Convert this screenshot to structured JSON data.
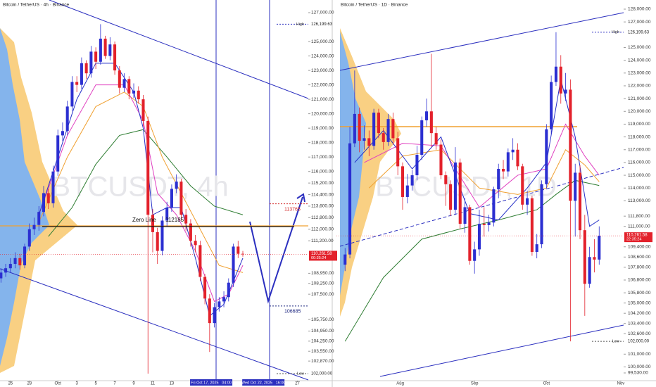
{
  "chart_data": [
    {
      "type": "candlestick",
      "title": "Bitcoin / TetherUS · 4h · Binance",
      "watermark": "BTCUSDT, 4h",
      "xlim": [
        -0.2,
        64.8
      ],
      "ylim": [
        101561,
        127877
      ],
      "xticks": [
        {
          "value": 2,
          "label": "26"
        },
        {
          "value": 6,
          "label": "28"
        },
        {
          "value": 12,
          "label": "Oct"
        },
        {
          "value": 16,
          "label": "3"
        },
        {
          "value": 20,
          "label": "5"
        },
        {
          "value": 24,
          "label": "7"
        },
        {
          "value": 28,
          "label": "9"
        },
        {
          "value": 32,
          "label": "11"
        },
        {
          "value": 36,
          "label": "13"
        },
        {
          "value": 62.5,
          "label": "27"
        }
      ],
      "yticks": [
        {
          "value": 127000,
          "label": "127,000.00"
        },
        {
          "value": 125000,
          "label": "125,000.00"
        },
        {
          "value": 124000,
          "label": "124,000.00"
        },
        {
          "value": 123000,
          "label": "123,000.00"
        },
        {
          "value": 122000,
          "label": "122,000.00"
        },
        {
          "value": 121000,
          "label": "121,000.00"
        },
        {
          "value": 120000,
          "label": "120,000.00"
        },
        {
          "value": 119000,
          "label": "119,000.00"
        },
        {
          "value": 118000,
          "label": "118,000.00"
        },
        {
          "value": 117000,
          "label": "117,000.00"
        },
        {
          "value": 116000,
          "label": "116,000.00"
        },
        {
          "value": 115200,
          "label": "115,200.00"
        },
        {
          "value": 114400,
          "label": "114,400.00"
        },
        {
          "value": 113600,
          "label": "113,600.00"
        },
        {
          "value": 112800,
          "label": "112,800.00"
        },
        {
          "value": 112000,
          "label": "112,000.00"
        },
        {
          "value": 111200,
          "label": "111,200.00"
        },
        {
          "value": 108950,
          "label": "108,950.00"
        },
        {
          "value": 108250,
          "label": "108,250.00"
        },
        {
          "value": 107500,
          "label": "107,500.00"
        },
        {
          "value": 105750,
          "label": "105,750.00"
        },
        {
          "value": 104950,
          "label": "104,950.00"
        },
        {
          "value": 104250,
          "label": "104,250.00"
        },
        {
          "value": 103550,
          "label": "103,550.00"
        },
        {
          "value": 102870,
          "label": "102,870.00"
        }
      ],
      "open": [
        108600,
        109000,
        109300,
        109600,
        110000,
        109500,
        110800,
        112000,
        112300,
        113200,
        114500,
        113800,
        116000,
        118500,
        118800,
        120500,
        122200,
        122000,
        123500,
        122800,
        124300,
        123600,
        125200,
        124000,
        124800,
        123000,
        121800,
        122400,
        121400,
        121600,
        121000,
        119500,
        113000,
        111800,
        110500,
        112600,
        113500,
        114800,
        115300,
        113000,
        112400,
        111200,
        110900,
        108700,
        107200,
        105500,
        106600,
        107000,
        107300,
        108300,
        110800,
        110300
      ],
      "high": [
        109300,
        109600,
        110000,
        110400,
        110300,
        111000,
        112400,
        112800,
        113600,
        115000,
        114800,
        116400,
        118900,
        119400,
        120900,
        122600,
        122600,
        123900,
        123700,
        124700,
        124600,
        126200,
        125400,
        125300,
        125000,
        123300,
        122800,
        122600,
        122100,
        121900,
        121300,
        119800,
        113400,
        112100,
        112900,
        113900,
        115100,
        115800,
        115500,
        113400,
        112700,
        111600,
        111200,
        108900,
        107500,
        106900,
        107300,
        107700,
        108600,
        111000,
        111200,
        110500
      ],
      "low": [
        108300,
        108700,
        109000,
        109300,
        109200,
        109300,
        110500,
        111600,
        111900,
        112900,
        113400,
        113500,
        115700,
        118100,
        118500,
        120200,
        121500,
        121700,
        122400,
        122500,
        123100,
        123400,
        123800,
        123700,
        122700,
        121400,
        121500,
        121000,
        121100,
        120700,
        119100,
        102000,
        110400,
        109600,
        110200,
        112200,
        113200,
        114500,
        112600,
        111900,
        110800,
        110400,
        108400,
        106800,
        103500,
        105200,
        106300,
        106600,
        107000,
        108000,
        110000,
        110100
      ],
      "close": [
        109000,
        109300,
        109600,
        110000,
        109500,
        110800,
        112000,
        112300,
        113200,
        114500,
        113800,
        116000,
        118500,
        118800,
        120500,
        122200,
        122000,
        123500,
        122800,
        124300,
        123600,
        125200,
        124000,
        124800,
        123000,
        121800,
        122400,
        121400,
        121600,
        121000,
        119500,
        113000,
        111800,
        110500,
        112600,
        113500,
        114800,
        115300,
        113000,
        112400,
        111200,
        110900,
        108700,
        107200,
        105500,
        106600,
        107000,
        107300,
        108300,
        110800,
        110300,
        110261.58
      ],
      "up_color": "#2b2fd1",
      "down_color": "#e3212b",
      "indicators": [
        {
          "color": "#2e7d32",
          "x": [
            10,
            15,
            20,
            25,
            30,
            35,
            40,
            45,
            51
          ],
          "values": [
            111500,
            113500,
            116500,
            118500,
            118900,
            117000,
            115000,
            113600,
            113000
          ]
        },
        {
          "color": "#f0a030",
          "x": [
            8,
            14,
            20,
            26,
            30,
            34,
            38,
            42,
            46,
            51
          ],
          "values": [
            112500,
            117000,
            120500,
            121500,
            120500,
            117000,
            114500,
            112000,
            109500,
            109000
          ]
        },
        {
          "color": "#e040c0",
          "x": [
            8,
            14,
            20,
            26,
            30,
            33,
            37,
            41,
            45,
            48,
            51
          ],
          "values": [
            113000,
            118500,
            122000,
            122000,
            119500,
            114500,
            113000,
            110500,
            107000,
            107500,
            109500
          ]
        },
        {
          "color": "#2530c8",
          "x": [
            8,
            12,
            16,
            20,
            24,
            28,
            30,
            32,
            35,
            38,
            41,
            44,
            47,
            51
          ],
          "values": [
            113000,
            117000,
            121000,
            123500,
            123500,
            121500,
            119000,
            113000,
            113500,
            113500,
            110000,
            106000,
            106800,
            110000
          ]
        }
      ],
      "high_marker": {
        "label": "High",
        "value": 126199.63,
        "value_label": "126,199.63"
      },
      "low_marker": {
        "label": "Low",
        "value": 102000,
        "value_label": "102,000.00"
      },
      "last_price": {
        "value": 110261.58,
        "value_label": "110,261.58",
        "countdown": "00:35:24"
      },
      "levels": [
        {
          "label": "Zero Line",
          "value": 112185,
          "color": "#111111"
        },
        {
          "value": 113765,
          "color": "#d32f2f"
        },
        {
          "value": 106685,
          "color": "#1a237e"
        }
      ],
      "cursor_labels": [
        {
          "value": 44.33,
          "label": "Fri Oct 17, 2025   04:00"
        },
        {
          "value": 55.33,
          "label": "Wed Oct 22, 2025   16:00"
        }
      ]
    },
    {
      "type": "candlestick",
      "title": "Bitcoin / TetherUS · 1D · Binance",
      "watermark": "BTCUSDT, 1D",
      "xlim": [
        -1.8,
        58.1
      ],
      "ylim": [
        98979,
        128716
      ],
      "xticks": [
        {
          "value": 11.5,
          "label": "Aug"
        },
        {
          "value": 27,
          "label": "Sep"
        },
        {
          "value": 42,
          "label": "Oct"
        },
        {
          "value": 57.5,
          "label": "Nov"
        }
      ],
      "yticks": [
        {
          "value": 128000,
          "label": "128,000.00"
        },
        {
          "value": 127000,
          "label": "127,000.00"
        },
        {
          "value": 125000,
          "label": "125,000.00"
        },
        {
          "value": 124000,
          "label": "124,000.00"
        },
        {
          "value": 123000,
          "label": "123,000.00"
        },
        {
          "value": 122000,
          "label": "122,000.00"
        },
        {
          "value": 121000,
          "label": "121,000.00"
        },
        {
          "value": 120000,
          "label": "120,000.00"
        },
        {
          "value": 119000,
          "label": "119,000.00"
        },
        {
          "value": 118000,
          "label": "118,000.00"
        },
        {
          "value": 117000,
          "label": "117,000.00"
        },
        {
          "value": 116000,
          "label": "116,000.00"
        },
        {
          "value": 115000,
          "label": "115,000.00"
        },
        {
          "value": 114000,
          "label": "114,000.00"
        },
        {
          "value": 113000,
          "label": "113,000.00"
        },
        {
          "value": 111800,
          "label": "111,800.00"
        },
        {
          "value": 111000,
          "label": "111,000.00"
        },
        {
          "value": 109400,
          "label": "109,400.00"
        },
        {
          "value": 108600,
          "label": "108,600.00"
        },
        {
          "value": 107800,
          "label": "107,800.00"
        },
        {
          "value": 106800,
          "label": "106,800.00"
        },
        {
          "value": 105800,
          "label": "105,800.00"
        },
        {
          "value": 105000,
          "label": "105,000.00"
        },
        {
          "value": 104200,
          "label": "104,200.00"
        },
        {
          "value": 103400,
          "label": "103,400.00"
        },
        {
          "value": 102600,
          "label": "102,600.00"
        },
        {
          "value": 101000,
          "label": "101,000.00"
        },
        {
          "value": 100000,
          "label": "100,000.00"
        },
        {
          "value": 99530,
          "label": "99,530.00"
        }
      ],
      "open": [
        108000,
        108800,
        117500,
        119800,
        117700,
        117900,
        117300,
        119900,
        118300,
        117600,
        119400,
        117900,
        115700,
        113300,
        114200,
        115000,
        116600,
        119300,
        120000,
        118300,
        117400,
        115000,
        114300,
        112300,
        116000,
        111200,
        112500,
        108300,
        109200,
        111200,
        111100,
        111300,
        113900,
        115500,
        115300,
        116800,
        117000,
        115700,
        112700,
        113200,
        109000,
        109600,
        114300,
        118600,
        122300,
        123500,
        121400,
        121700,
        113000,
        115200,
        110700,
        106500,
        108600,
        108400
      ],
      "high": [
        109300,
        118800,
        123200,
        120300,
        118900,
        118500,
        120200,
        120200,
        118700,
        119800,
        119900,
        118400,
        116000,
        115100,
        115400,
        117300,
        119600,
        121000,
        124500,
        118800,
        117800,
        115300,
        114600,
        117200,
        116300,
        113200,
        112700,
        109800,
        112300,
        112500,
        111900,
        114100,
        115900,
        116200,
        117100,
        117900,
        117500,
        115900,
        113800,
        113400,
        110400,
        114600,
        119000,
        122800,
        126200,
        124400,
        123000,
        122500,
        115900,
        115800,
        111900,
        109400,
        110000,
        111000
      ],
      "low": [
        107500,
        108500,
        117200,
        116800,
        117000,
        116500,
        117000,
        117900,
        117000,
        117300,
        117400,
        115000,
        112300,
        112800,
        113800,
        114600,
        116200,
        118800,
        117200,
        117000,
        114700,
        112600,
        111800,
        111900,
        110800,
        110500,
        108000,
        107300,
        108700,
        110200,
        110600,
        111000,
        113200,
        114700,
        114900,
        116200,
        115400,
        112300,
        111900,
        108700,
        108500,
        109300,
        114000,
        118200,
        122000,
        120600,
        120800,
        102000,
        110200,
        110000,
        104000,
        106200,
        107400,
        108000
      ],
      "close": [
        108800,
        117500,
        119800,
        117700,
        117900,
        117300,
        119900,
        118300,
        117600,
        119400,
        117900,
        115700,
        113300,
        114200,
        115000,
        116600,
        119300,
        120000,
        118300,
        117400,
        115000,
        114300,
        112300,
        116000,
        111200,
        112500,
        108300,
        109200,
        111200,
        111100,
        111300,
        113900,
        115500,
        115300,
        116800,
        117000,
        115700,
        112700,
        113200,
        109000,
        109600,
        114300,
        118600,
        122300,
        123500,
        121400,
        121700,
        113000,
        115200,
        110700,
        106500,
        108600,
        108400,
        110261.58
      ],
      "up_color": "#2b2fd1",
      "down_color": "#e3212b",
      "indicators": [
        {
          "color": "#2e7d32",
          "x": [
            0,
            8,
            16,
            24,
            32,
            40,
            44,
            48,
            53
          ],
          "values": [
            102000,
            107000,
            110000,
            110800,
            111500,
            112300,
            113500,
            114600,
            114200
          ]
        },
        {
          "color": "#f0a030",
          "x": [
            5,
            12,
            20,
            28,
            36,
            42,
            46,
            50,
            53
          ],
          "values": [
            114000,
            116500,
            117000,
            114000,
            113500,
            114000,
            117000,
            115800,
            114500
          ]
        },
        {
          "color": "#e040c0",
          "x": [
            4,
            12,
            20,
            28,
            36,
            42,
            46,
            50,
            53
          ],
          "values": [
            116000,
            117500,
            117300,
            112500,
            115000,
            115500,
            119000,
            116500,
            115000
          ]
        },
        {
          "color": "#2530c8",
          "x": [
            2,
            8,
            14,
            20,
            26,
            32,
            38,
            42,
            45,
            48,
            51,
            53
          ],
          "values": [
            116000,
            118500,
            115500,
            118000,
            112000,
            111500,
            114000,
            116000,
            122500,
            118000,
            111000,
            111500
          ]
        }
      ],
      "high_marker": {
        "label": "High",
        "value": 126199.63,
        "value_label": "126,199.63"
      },
      "low_marker": {
        "label": "Low",
        "value": 102000,
        "value_label": "102,000.00"
      },
      "last_price": {
        "value": 110261.58,
        "value_label": "110,261.58",
        "countdown": "22:35:24"
      }
    }
  ]
}
